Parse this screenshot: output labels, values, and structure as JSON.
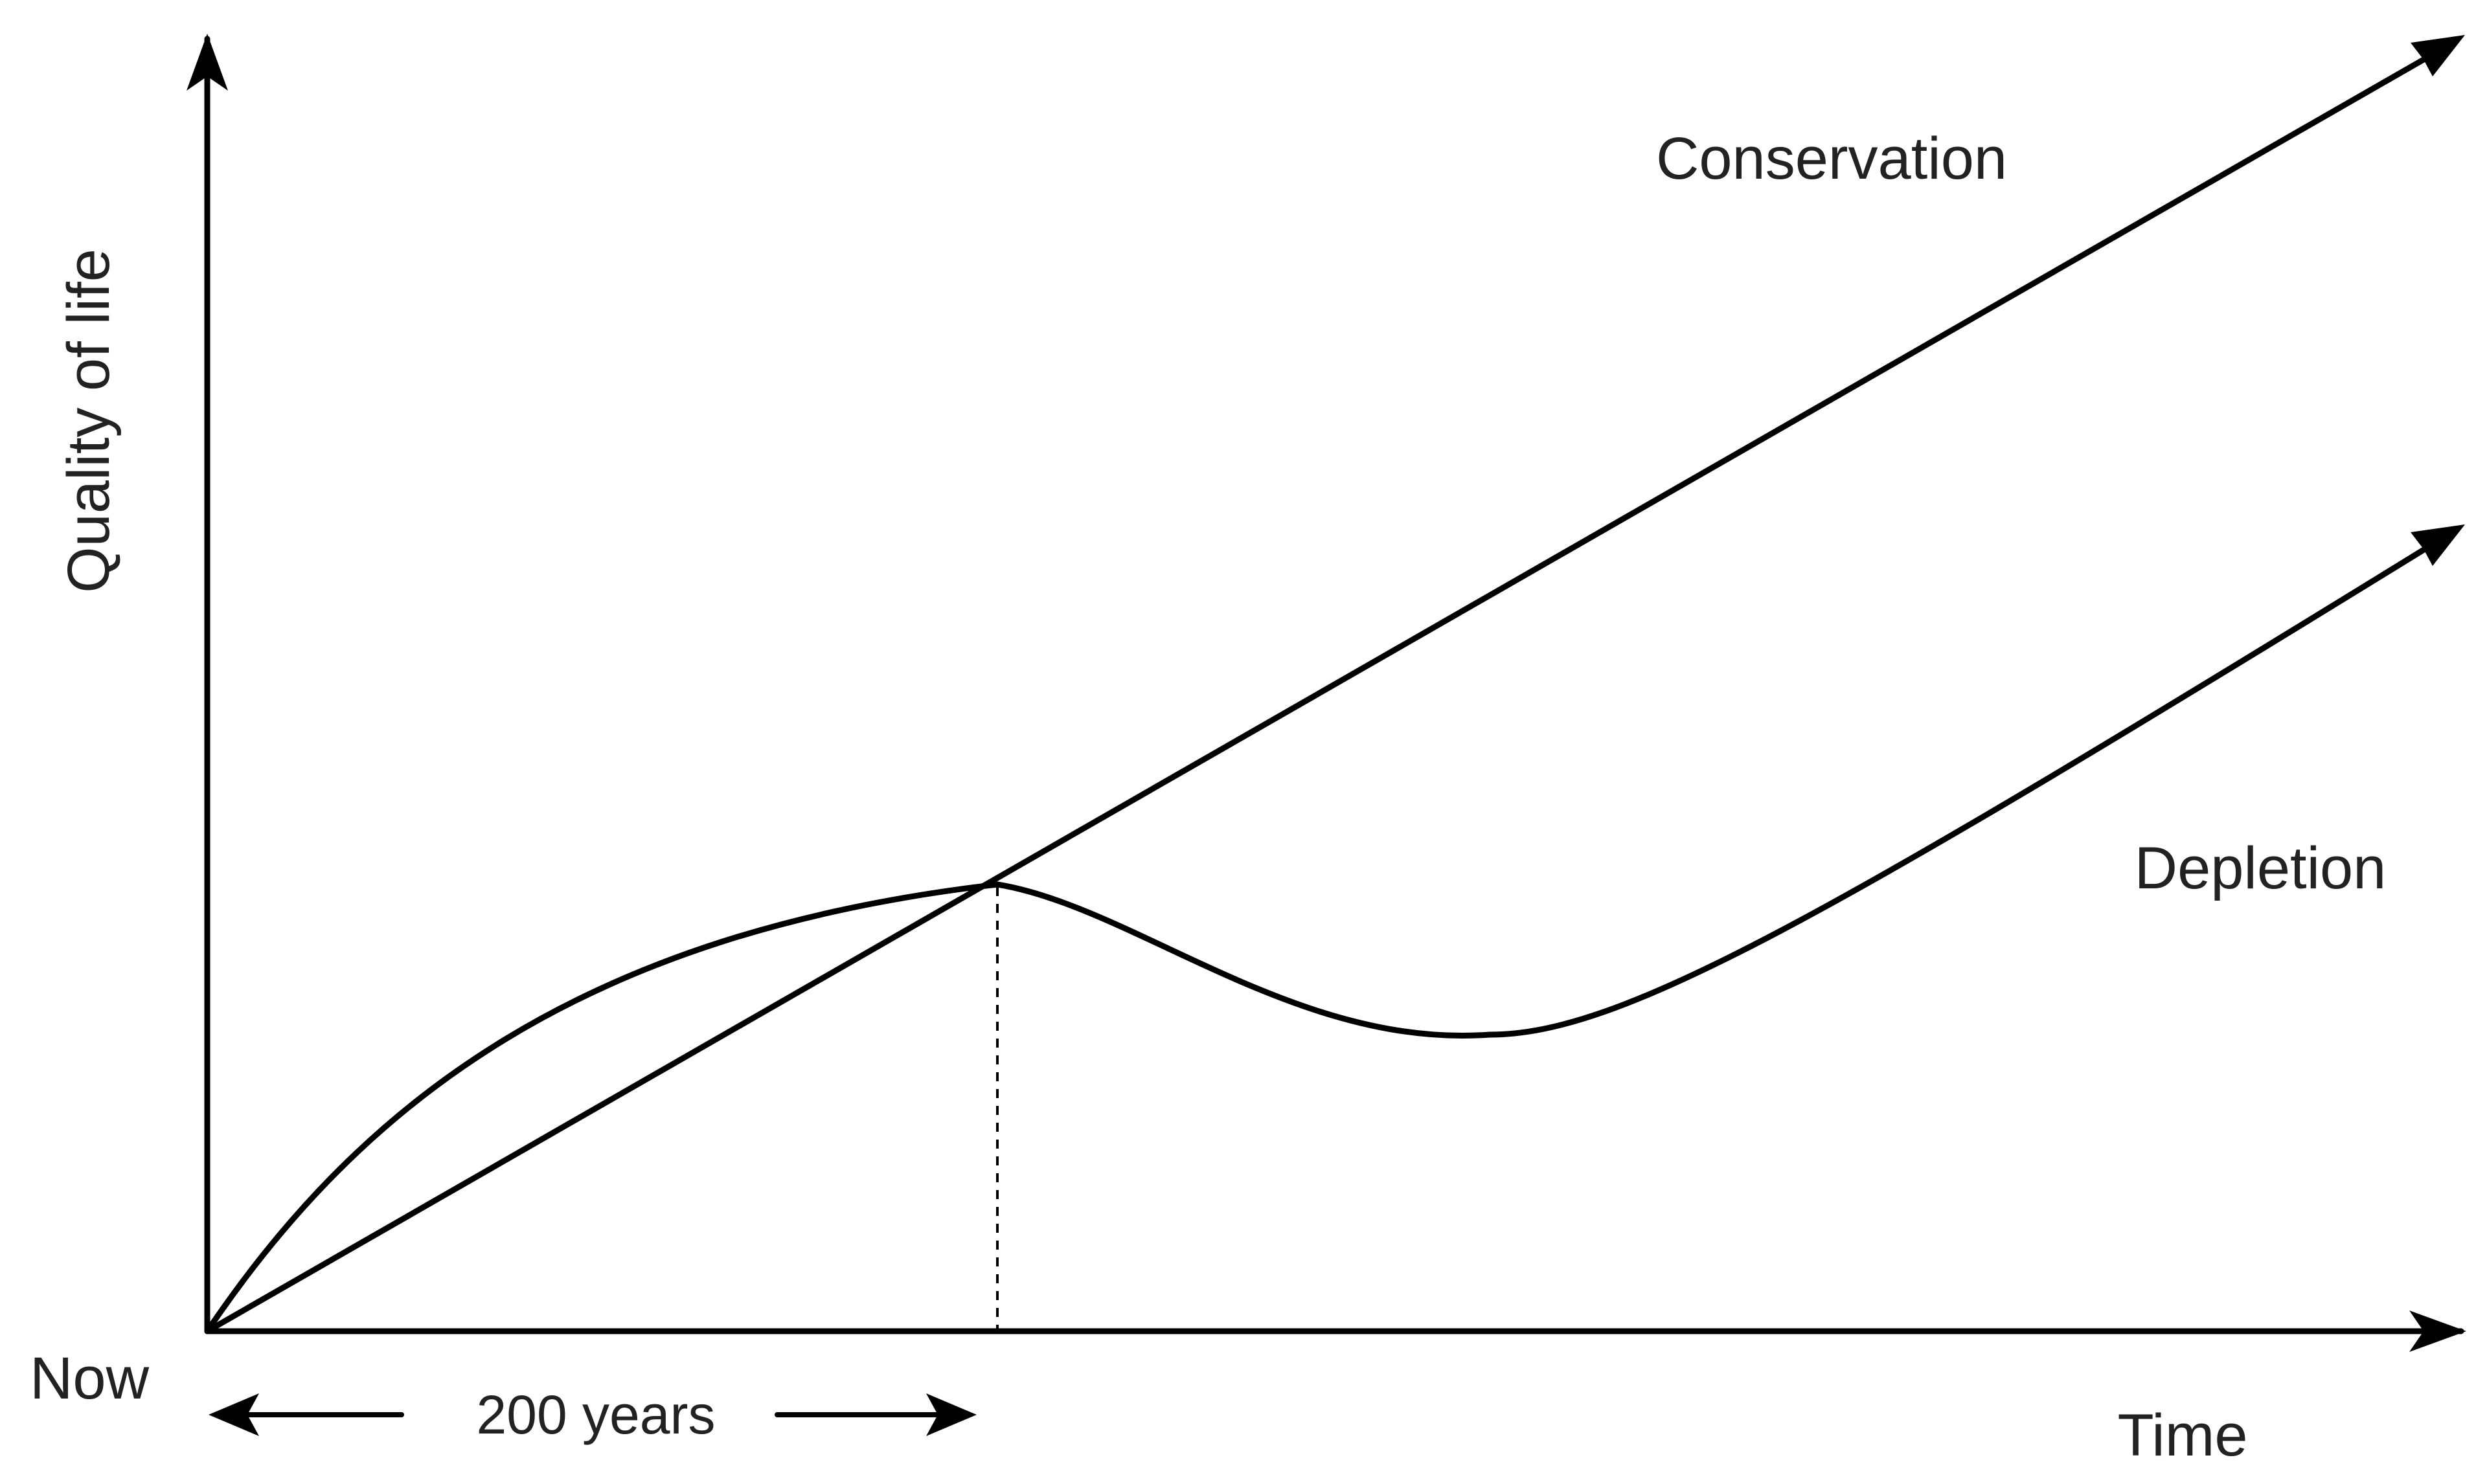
{
  "labels": {
    "y_axis": "Quality of life",
    "x_axis": "Time",
    "origin": "Now",
    "span": "200 years",
    "conservation": "Conservation",
    "depletion": "Depletion"
  },
  "colors": {
    "line": "#000000",
    "text": "#222222",
    "background": "#ffffff"
  }
}
